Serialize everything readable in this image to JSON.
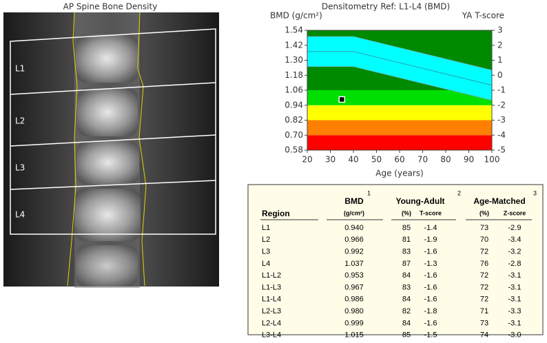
{
  "image": {
    "title": "AP Spine Bone Density",
    "labels": [
      "L1",
      "L2",
      "L3",
      "L4"
    ]
  },
  "chart_data": {
    "type": "band",
    "title": "Densitometry Ref: L1-L4 (BMD)",
    "y_label": "BMD (g/cm²)",
    "y2_label": "YA T-score",
    "x_label": "Age (years)",
    "xlim": [
      20,
      100
    ],
    "xticks": [
      20,
      30,
      40,
      50,
      60,
      70,
      80,
      90,
      100
    ],
    "ylim": [
      0.58,
      1.54
    ],
    "yticks": [
      0.58,
      {
        "value": 0.7,
        "label": "0.70"
      },
      0.82,
      0.94,
      1.06,
      1.18,
      {
        "value": 1.3,
        "label": "1.30"
      },
      1.42,
      1.54
    ],
    "y2lim": [
      -5,
      3
    ],
    "y2ticks": [
      -5,
      -4,
      -3,
      -2,
      -1,
      0,
      1,
      2,
      3
    ],
    "zones": [
      {
        "ylim": [
          0.58,
          0.7
        ],
        "color": "#ff0000"
      },
      {
        "ylim": [
          0.7,
          0.82
        ],
        "color": "#ff8000"
      },
      {
        "ylim": [
          0.82,
          0.94
        ],
        "color": "#ffff00"
      },
      {
        "ylim": [
          0.94,
          1.06
        ],
        "color": "#00e000"
      },
      {
        "ylim": [
          1.06,
          1.54
        ],
        "color": "#008a00"
      }
    ],
    "x": [
      20,
      40,
      100
    ],
    "series": [
      {
        "color": "#00ffff",
        "values": [
          1.49,
          1.49,
          1.22
        ]
      },
      {
        "color": "#2a9db0",
        "values": [
          1.37,
          1.37,
          1.1
        ]
      },
      {
        "color": "#00ffff",
        "values": [
          1.25,
          1.25,
          0.98
        ]
      }
    ],
    "point": {
      "x": 35,
      "y": 0.986,
      "color": "#000000"
    }
  },
  "table": {
    "headers": {
      "region": "Region",
      "bmd": "BMD",
      "bmd_unit": "(g/cm²)",
      "young_adult": "Young-Adult",
      "ya_pct": "(%)",
      "t_score": "T-score",
      "age_matched": "Age-Matched",
      "am_pct": "(%)",
      "z_score": "Z-score"
    },
    "notes": [
      "1",
      "2",
      "3"
    ],
    "rows": [
      [
        "L1",
        "0.940",
        "85",
        "-1.4",
        "73",
        "-2.9"
      ],
      [
        "L2",
        "0.966",
        "81",
        "-1.9",
        "70",
        "-3.4"
      ],
      [
        "L3",
        "0.992",
        "83",
        "-1.6",
        "72",
        "-3.2"
      ],
      [
        "L4",
        "1.037",
        "87",
        "-1.3",
        "76",
        "-2.8"
      ],
      [
        "L1-L2",
        "0.953",
        "84",
        "-1.6",
        "72",
        "-3.1"
      ],
      [
        "L1-L3",
        "0.967",
        "83",
        "-1.6",
        "72",
        "-3.1"
      ],
      [
        "L1-L4",
        "0.986",
        "84",
        "-1.6",
        "72",
        "-3.1"
      ],
      [
        "L2-L3",
        "0.980",
        "82",
        "-1.8",
        "71",
        "-3.3"
      ],
      [
        "L2-L4",
        "0.999",
        "84",
        "-1.6",
        "73",
        "-3.1"
      ],
      [
        "L3-L4",
        "1.015",
        "85",
        "-1.5",
        "74",
        "-3.0"
      ]
    ]
  }
}
